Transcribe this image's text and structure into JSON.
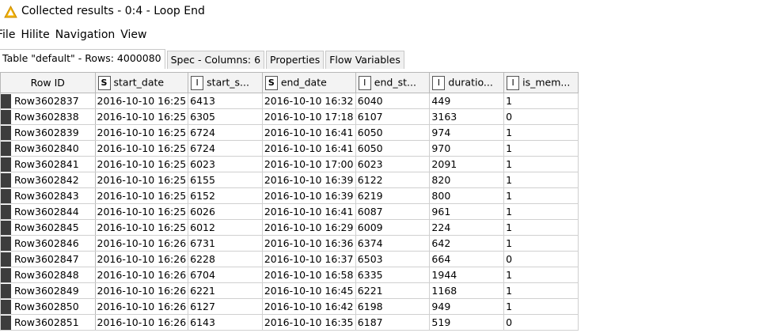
{
  "window": {
    "title": "Collected results - 0:4 - Loop End"
  },
  "menu": [
    "File",
    "Hilite",
    "Navigation",
    "View"
  ],
  "tabs": [
    "Table \"default\" - Rows: 4000080",
    "Spec - Columns: 6",
    "Properties",
    "Flow Variables"
  ],
  "table": {
    "rowid_header": "Row ID",
    "columns": [
      {
        "type": "S",
        "label": "start_date"
      },
      {
        "type": "I",
        "label": "start_s..."
      },
      {
        "type": "S",
        "label": "end_date"
      },
      {
        "type": "I",
        "label": "end_st..."
      },
      {
        "type": "I",
        "label": "duratio..."
      },
      {
        "type": "I",
        "label": "is_mem..."
      }
    ],
    "rows": [
      [
        "Row3602837",
        "2016-10-10 16:25",
        "6413",
        "2016-10-10 16:32",
        "6040",
        "449",
        "1"
      ],
      [
        "Row3602838",
        "2016-10-10 16:25",
        "6305",
        "2016-10-10 17:18",
        "6107",
        "3163",
        "0"
      ],
      [
        "Row3602839",
        "2016-10-10 16:25",
        "6724",
        "2016-10-10 16:41",
        "6050",
        "974",
        "1"
      ],
      [
        "Row3602840",
        "2016-10-10 16:25",
        "6724",
        "2016-10-10 16:41",
        "6050",
        "970",
        "1"
      ],
      [
        "Row3602841",
        "2016-10-10 16:25",
        "6023",
        "2016-10-10 17:00",
        "6023",
        "2091",
        "1"
      ],
      [
        "Row3602842",
        "2016-10-10 16:25",
        "6155",
        "2016-10-10 16:39",
        "6122",
        "820",
        "1"
      ],
      [
        "Row3602843",
        "2016-10-10 16:25",
        "6152",
        "2016-10-10 16:39",
        "6219",
        "800",
        "1"
      ],
      [
        "Row3602844",
        "2016-10-10 16:25",
        "6026",
        "2016-10-10 16:41",
        "6087",
        "961",
        "1"
      ],
      [
        "Row3602845",
        "2016-10-10 16:25",
        "6012",
        "2016-10-10 16:29",
        "6009",
        "224",
        "1"
      ],
      [
        "Row3602846",
        "2016-10-10 16:26",
        "6731",
        "2016-10-10 16:36",
        "6374",
        "642",
        "1"
      ],
      [
        "Row3602847",
        "2016-10-10 16:26",
        "6228",
        "2016-10-10 16:37",
        "6503",
        "664",
        "0"
      ],
      [
        "Row3602848",
        "2016-10-10 16:26",
        "6704",
        "2016-10-10 16:58",
        "6335",
        "1944",
        "1"
      ],
      [
        "Row3602849",
        "2016-10-10 16:26",
        "6221",
        "2016-10-10 16:45",
        "6221",
        "1168",
        "1"
      ],
      [
        "Row3602850",
        "2016-10-10 16:26",
        "6127",
        "2016-10-10 16:42",
        "6198",
        "949",
        "1"
      ],
      [
        "Row3602851",
        "2016-10-10 16:26",
        "6143",
        "2016-10-10 16:35",
        "6187",
        "519",
        "0"
      ]
    ]
  },
  "colors": {
    "warning": "#f4b400",
    "row_marker": "#3d3d3d",
    "header_bg": "#f3f3f3"
  },
  "icons": {
    "title": "warning-icon"
  }
}
